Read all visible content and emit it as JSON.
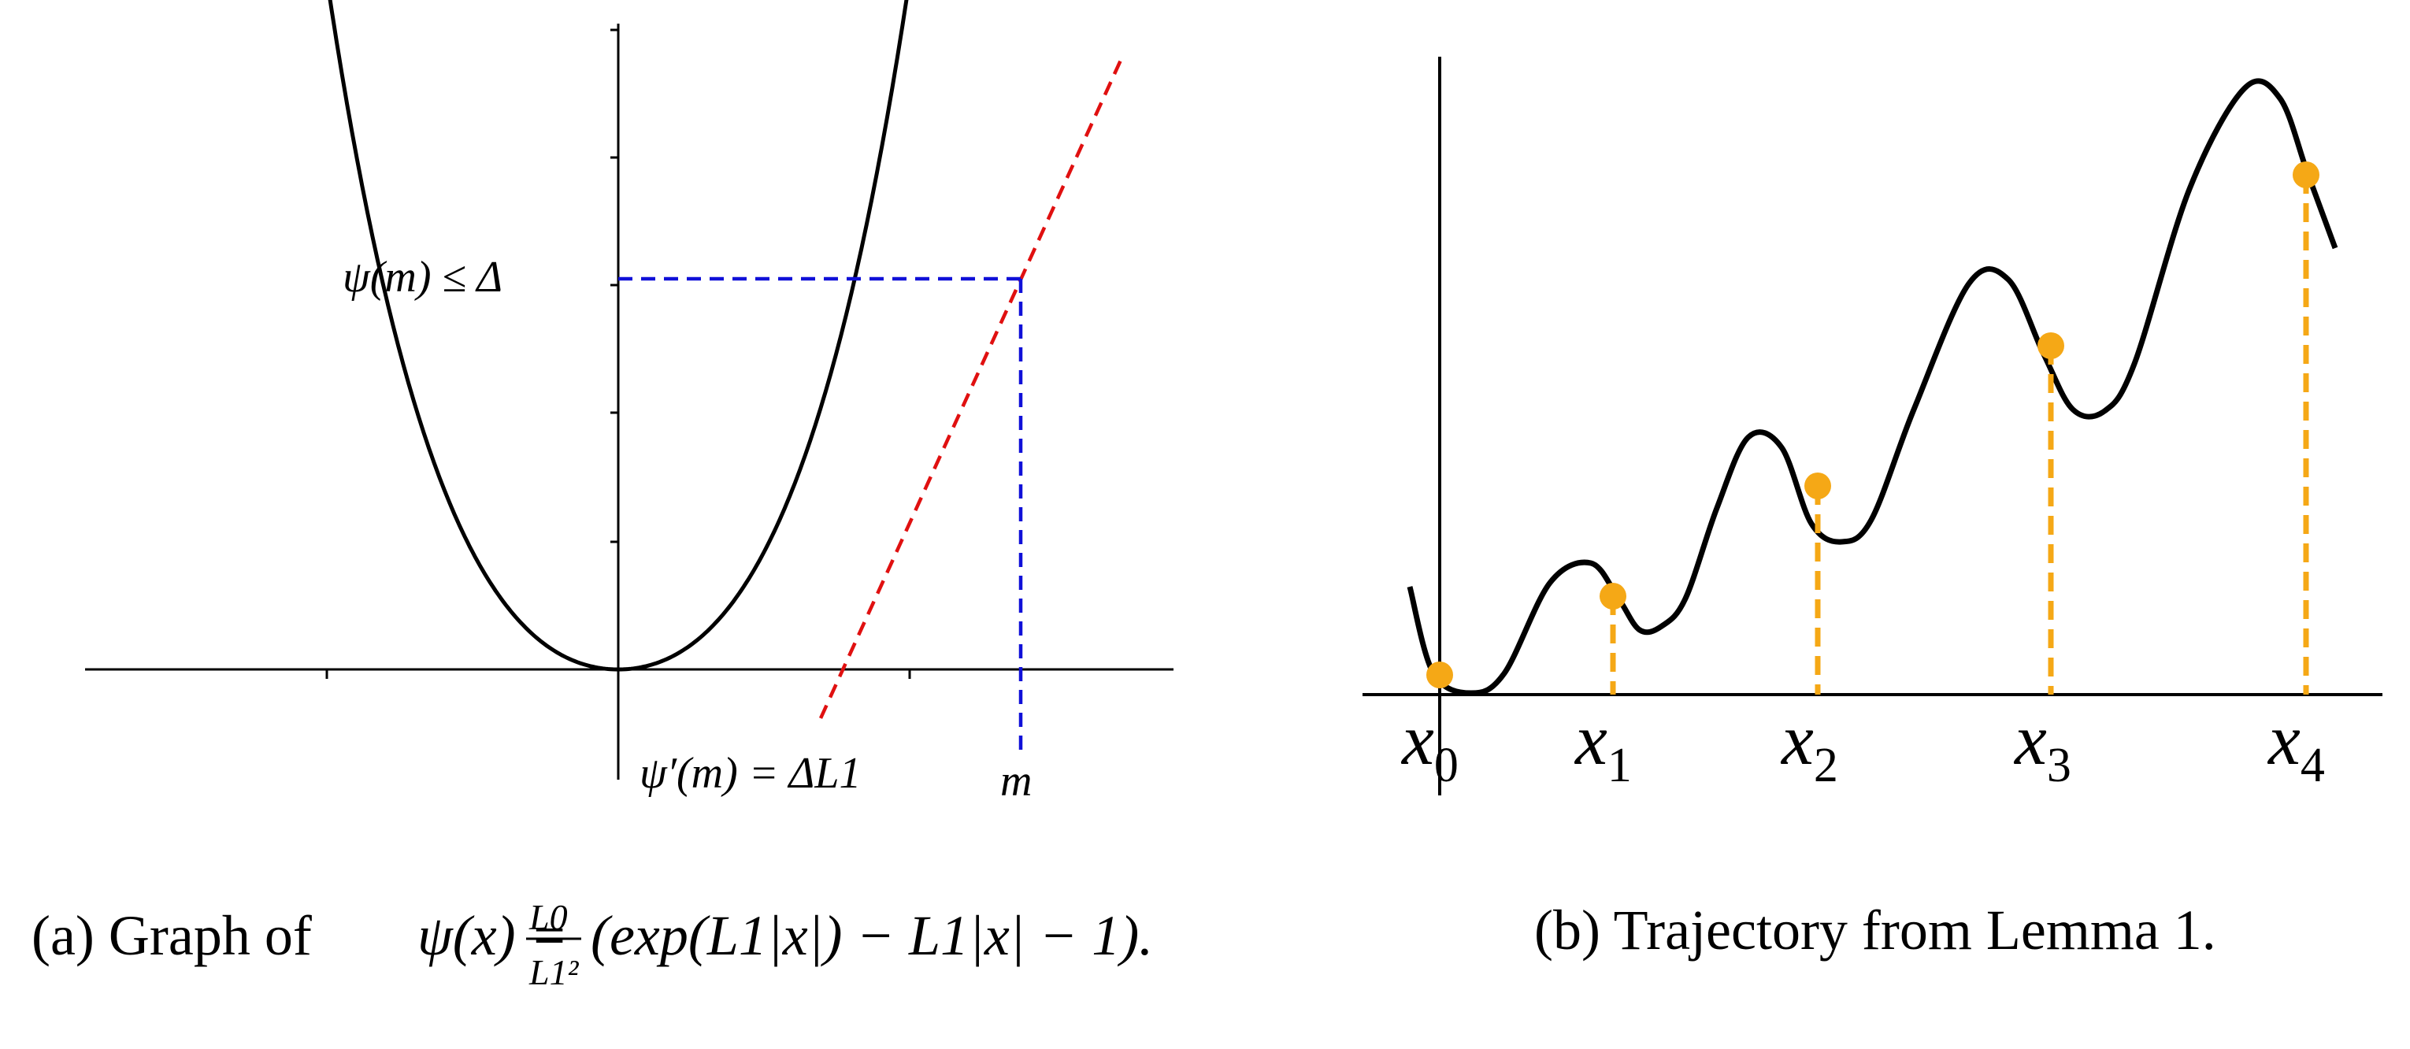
{
  "figure": {
    "panel_a": {
      "caption_prefix": "(a) Graph of ",
      "caption_formula": {
        "lhs": "ψ(x) = ",
        "frac_num": "L0",
        "frac_den": "L1²",
        "rhs": " (exp(L1|x|) − L1|x| − 1)."
      },
      "label_psi_m": "ψ(m) ≤ Δ",
      "label_deriv": "ψ′(m) = ΔL1",
      "label_m": "m",
      "colors": {
        "curve": "#000000",
        "guide": "#1010d8",
        "tangent": "#e01010"
      }
    },
    "panel_b": {
      "caption": "(b) Trajectory from Lemma 1.",
      "points": [
        {
          "var": "x",
          "sub": "0"
        },
        {
          "var": "x",
          "sub": "1"
        },
        {
          "var": "x",
          "sub": "2"
        },
        {
          "var": "x",
          "sub": "3"
        },
        {
          "var": "x",
          "sub": "4"
        }
      ],
      "colors": {
        "curve": "#000000",
        "marker": "#f5a816",
        "drop_line": "#f5a816"
      }
    }
  }
}
